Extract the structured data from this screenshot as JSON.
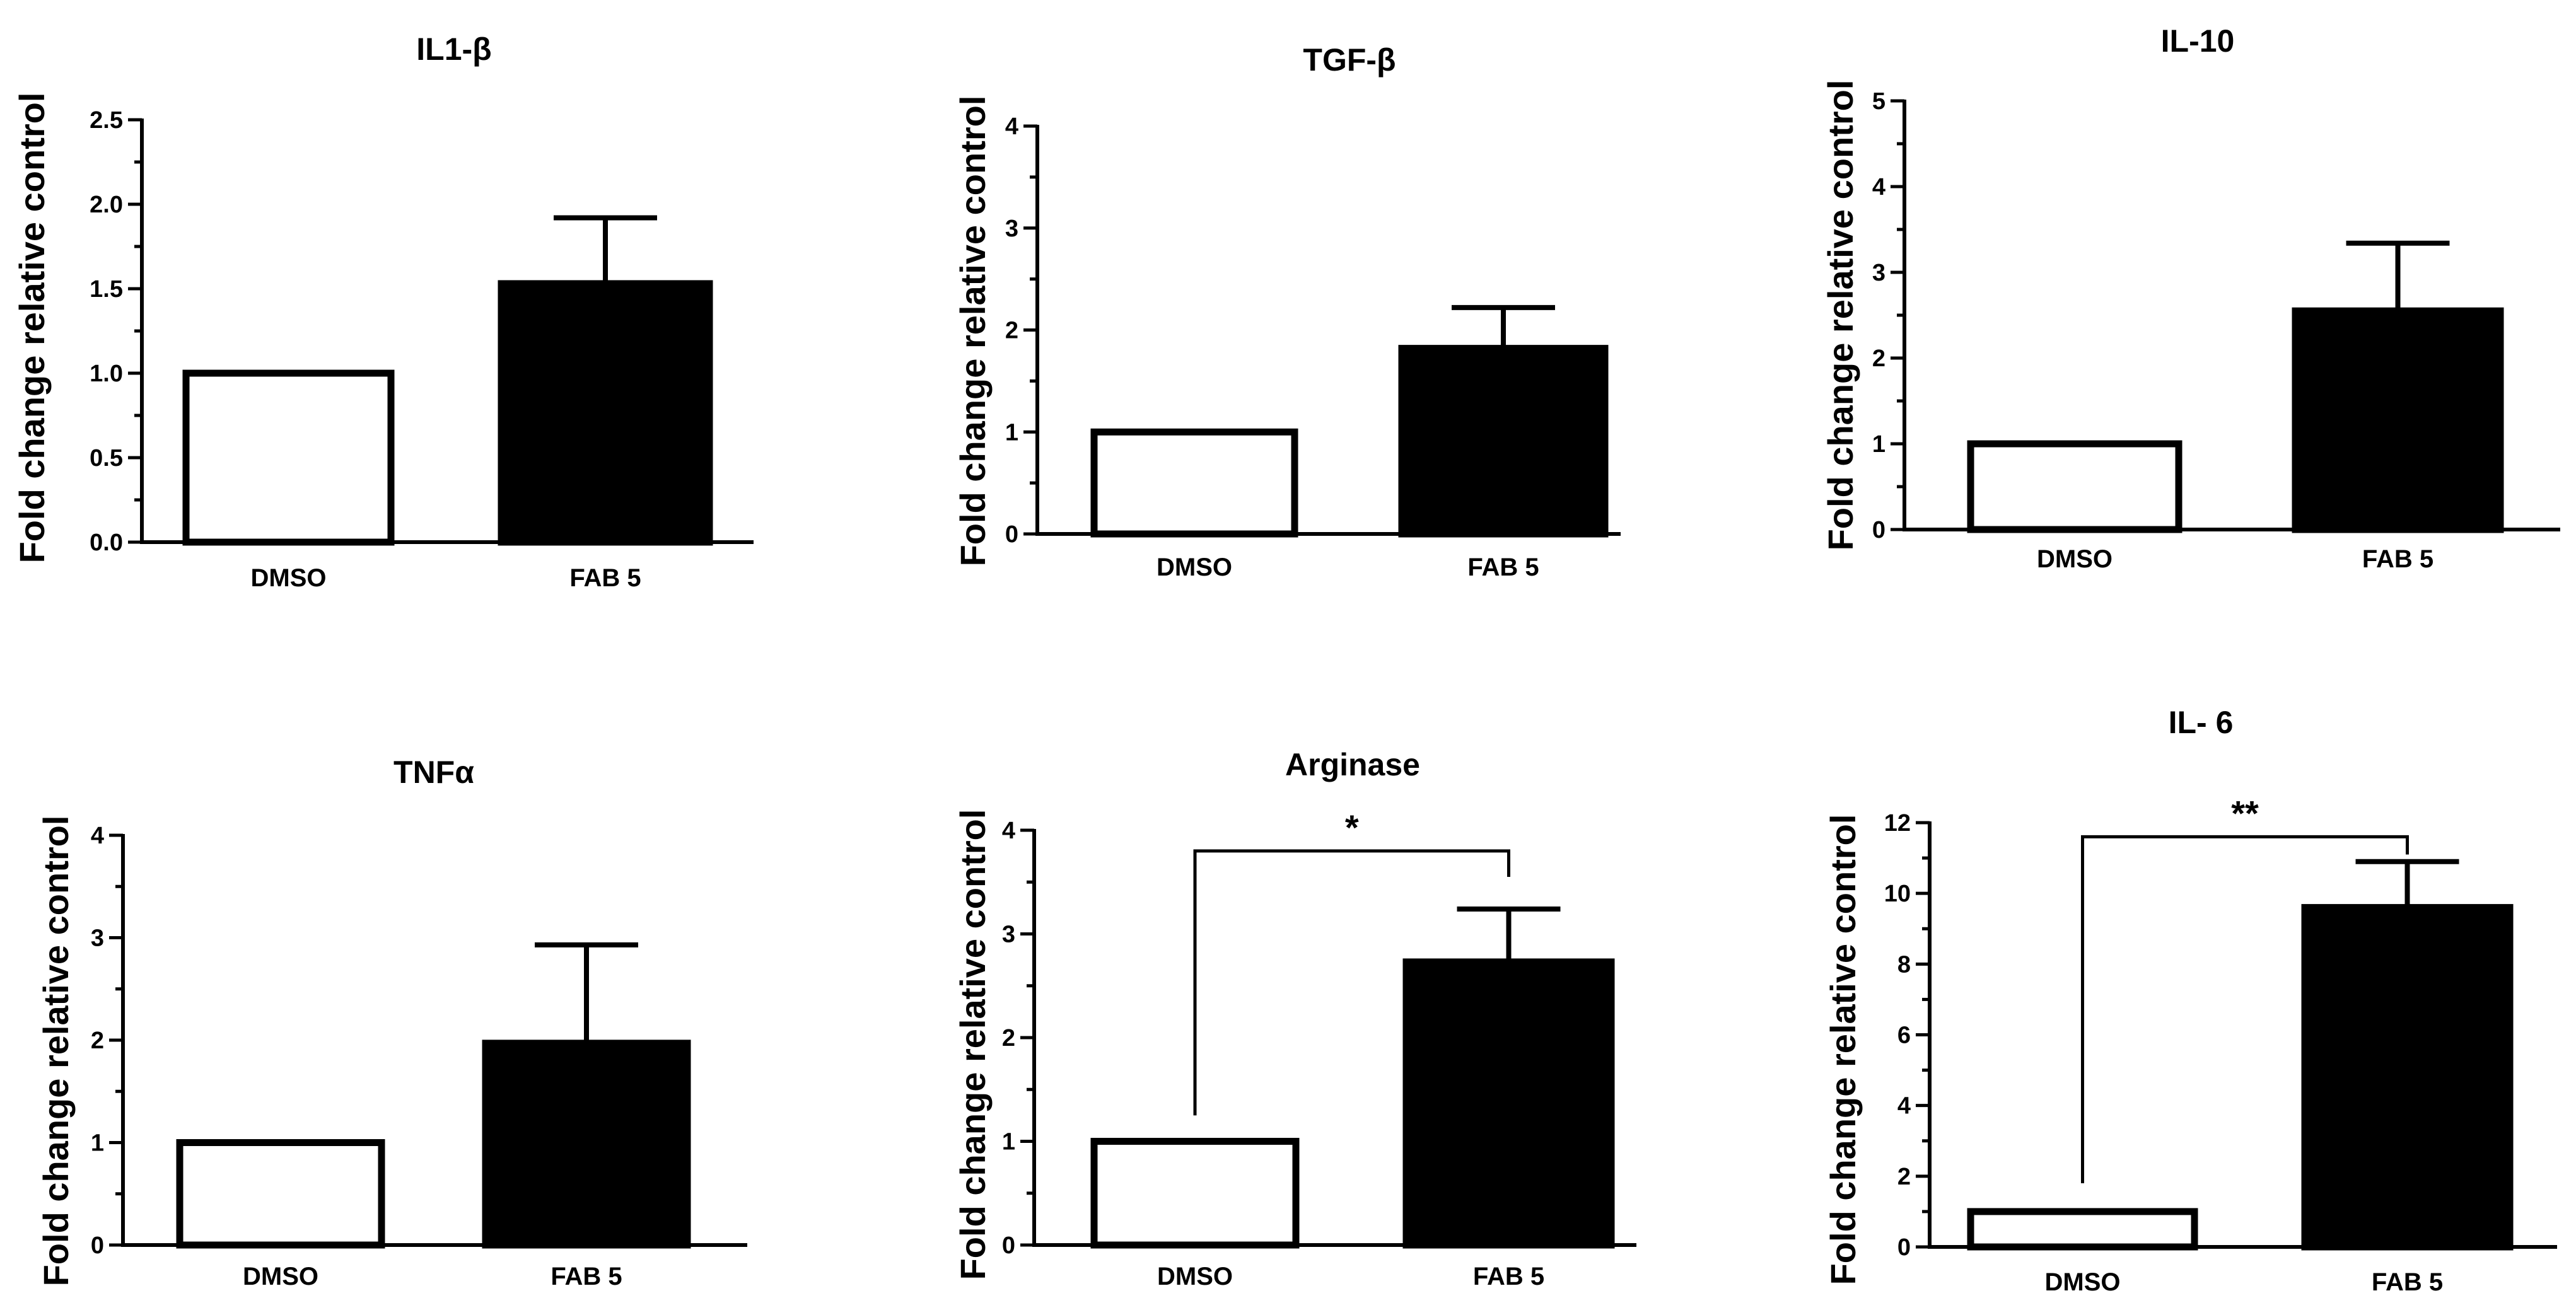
{
  "chart_data": [
    {
      "type": "bar",
      "title": "IL1-β",
      "ylabel": "Fold change relative control",
      "categories": [
        "DMSO",
        "FAB 5"
      ],
      "values": [
        1.0,
        1.53
      ],
      "errors": [
        0,
        0.39
      ],
      "ylim": [
        0,
        2.5
      ],
      "yticks": [
        0.0,
        0.5,
        1.0,
        1.5,
        2.0,
        2.5
      ],
      "ytick_labels": [
        "0.0",
        "0.5",
        "1.0",
        "1.5",
        "2.0",
        "2.5"
      ],
      "bar_colors": [
        "#ffffff",
        "#000000"
      ]
    },
    {
      "type": "bar",
      "title": "TGF-β",
      "ylabel": "Fold change relative control",
      "categories": [
        "DMSO",
        "FAB 5"
      ],
      "values": [
        1.0,
        1.82
      ],
      "errors": [
        0,
        0.4
      ],
      "ylim": [
        0,
        4
      ],
      "yticks": [
        0,
        1,
        2,
        3,
        4
      ],
      "ytick_labels": [
        "0",
        "1",
        "2",
        "3",
        "4"
      ],
      "bar_colors": [
        "#ffffff",
        "#000000"
      ]
    },
    {
      "type": "bar",
      "title": "IL-10",
      "ylabel": "Fold change relative control",
      "categories": [
        "DMSO",
        "FAB 5"
      ],
      "values": [
        1.0,
        2.55
      ],
      "errors": [
        0,
        0.79
      ],
      "ylim": [
        0,
        5
      ],
      "yticks": [
        0,
        1,
        2,
        3,
        4,
        5
      ],
      "ytick_labels": [
        "0",
        "1",
        "2",
        "3",
        "4",
        "5"
      ],
      "bar_colors": [
        "#ffffff",
        "#000000"
      ]
    },
    {
      "type": "bar",
      "title": "TNFα",
      "ylabel": "Fold change relative control",
      "categories": [
        "DMSO",
        "FAB 5"
      ],
      "values": [
        1.0,
        1.97
      ],
      "errors": [
        0,
        0.96
      ],
      "ylim": [
        0,
        4
      ],
      "yticks": [
        0,
        1,
        2,
        3,
        4
      ],
      "ytick_labels": [
        "0",
        "1",
        "2",
        "3",
        "4"
      ],
      "bar_colors": [
        "#ffffff",
        "#000000"
      ]
    },
    {
      "type": "bar",
      "title": "Arginase",
      "ylabel": "Fold change relative control",
      "categories": [
        "DMSO",
        "FAB 5"
      ],
      "values": [
        1.0,
        2.73
      ],
      "errors": [
        0,
        0.51
      ],
      "ylim": [
        0,
        4
      ],
      "yticks": [
        0,
        1,
        2,
        3,
        4
      ],
      "ytick_labels": [
        "0",
        "1",
        "2",
        "3",
        "4"
      ],
      "bar_colors": [
        "#ffffff",
        "#000000"
      ],
      "significance": {
        "label": "*",
        "bracket_y": 3.8,
        "left_drop_to": 1.25,
        "right_drop_to": 3.55
      }
    },
    {
      "type": "bar",
      "title": "IL- 6",
      "ylabel": "Fold change relative control",
      "categories": [
        "DMSO",
        "FAB 5"
      ],
      "values": [
        1.0,
        9.6
      ],
      "errors": [
        0,
        1.3
      ],
      "ylim": [
        0,
        12
      ],
      "yticks": [
        0,
        2,
        4,
        6,
        8,
        10,
        12
      ],
      "ytick_labels": [
        "0",
        "2",
        "4",
        "6",
        "8",
        "10",
        "12"
      ],
      "bar_colors": [
        "#ffffff",
        "#000000"
      ],
      "significance": {
        "label": "**",
        "bracket_y": 11.6,
        "left_drop_to": 1.8,
        "right_drop_to": 11.1
      }
    }
  ]
}
